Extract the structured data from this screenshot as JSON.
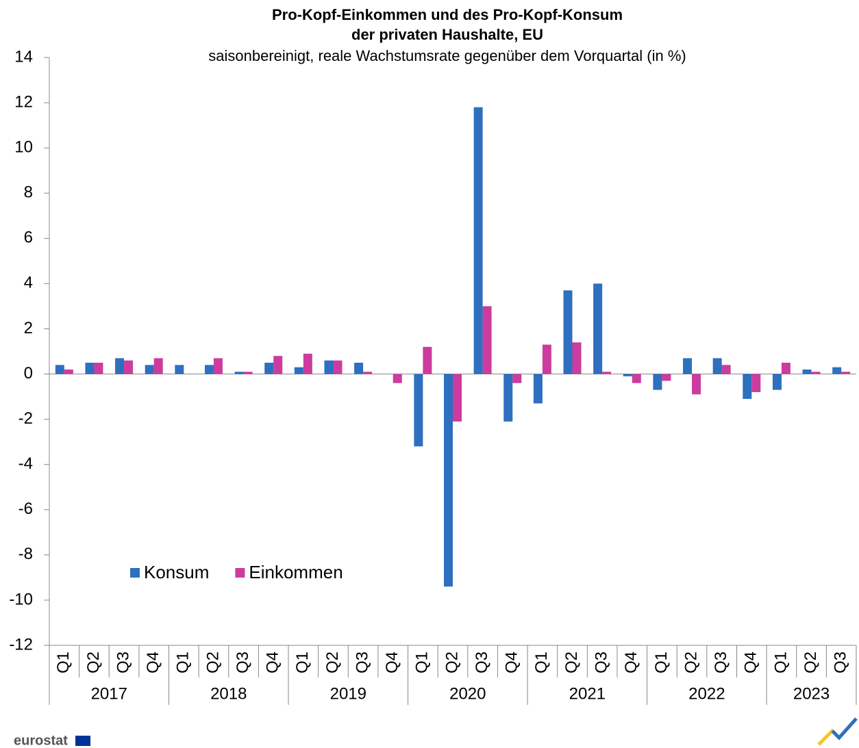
{
  "chart_data": {
    "type": "bar",
    "title": [
      "Pro-Kopf-Einkommen  und des Pro-Kopf-Konsum",
      "der privaten Haushalte, EU"
    ],
    "subtitle": "saisonbereinigt, reale Wachstumsrate gegenüber dem Vorquartal (in %)",
    "groups": [
      {
        "name": "2017",
        "categories": [
          "Q1",
          "Q2",
          "Q3",
          "Q4"
        ]
      },
      {
        "name": "2018",
        "categories": [
          "Q1",
          "Q2",
          "Q3",
          "Q4"
        ]
      },
      {
        "name": "2019",
        "categories": [
          "Q1",
          "Q2",
          "Q3",
          "Q4"
        ]
      },
      {
        "name": "2020",
        "categories": [
          "Q1",
          "Q2",
          "Q3",
          "Q4"
        ]
      },
      {
        "name": "2021",
        "categories": [
          "Q1",
          "Q2",
          "Q3",
          "Q4"
        ]
      },
      {
        "name": "2022",
        "categories": [
          "Q1",
          "Q2",
          "Q3",
          "Q4"
        ]
      },
      {
        "name": "2023",
        "categories": [
          "Q1",
          "Q2",
          "Q3"
        ]
      }
    ],
    "series": [
      {
        "name": "Konsum",
        "color": "#2e6fbf",
        "values": [
          0.4,
          0.5,
          0.7,
          0.4,
          0.4,
          0.4,
          0.1,
          0.5,
          0.3,
          0.6,
          0.5,
          0.0,
          -3.2,
          -9.4,
          11.8,
          -2.1,
          -1.3,
          3.7,
          4.0,
          -0.1,
          -0.7,
          0.7,
          0.7,
          -1.1,
          -0.7,
          0.2,
          0.3
        ]
      },
      {
        "name": "Einkommen",
        "color": "#cc3c9e",
        "values": [
          0.2,
          0.5,
          0.6,
          0.7,
          0.0,
          0.7,
          0.1,
          0.8,
          0.9,
          0.6,
          0.1,
          -0.4,
          1.2,
          -2.1,
          3.0,
          -0.4,
          1.3,
          1.4,
          0.1,
          -0.4,
          -0.3,
          -0.9,
          0.4,
          -0.8,
          0.5,
          0.1,
          0.1
        ]
      }
    ],
    "ylim": [
      -12,
      14
    ],
    "yticks": [
      -12,
      -10,
      -8,
      -6,
      -4,
      -2,
      0,
      2,
      4,
      6,
      8,
      10,
      12,
      14
    ],
    "grid": false,
    "legend": "lower left",
    "source_logo": "eurostat"
  }
}
